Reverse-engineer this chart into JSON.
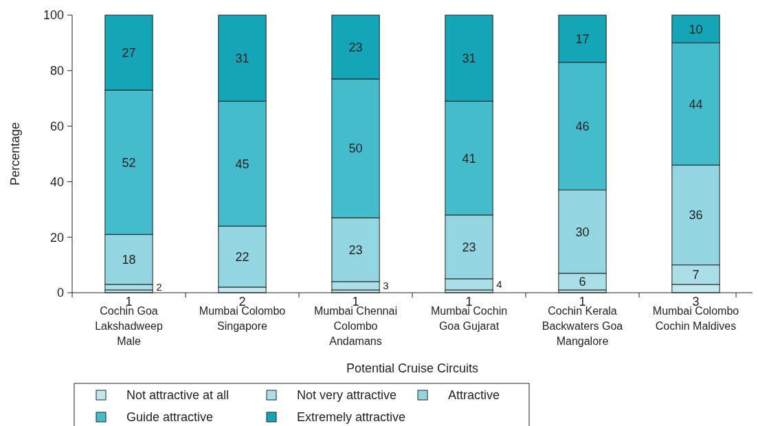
{
  "chart_data": {
    "type": "bar",
    "stacked": true,
    "xlabel": "Potential Cruise Circuits",
    "ylabel": "Percentage",
    "categories": [
      "Cochin Goa Lakshadweep Male",
      "Mumbai Colombo Singapore",
      "Mumbai Chennai Colombo Andamans",
      "Mumbai Cochin Goa Gujarat",
      "Cochin Kerala Backwaters Goa Mangalore",
      "Mumbai Colombo Cochin Maldives"
    ],
    "series": [
      {
        "name": "Not attractive at all",
        "color": "#c2e8ee",
        "values": [
          1,
          2,
          1,
          1,
          1,
          3
        ],
        "value_labels": [
          "1",
          "2",
          "1",
          "1",
          "1",
          "3"
        ]
      },
      {
        "name": "Not very attractive",
        "color": "#aadfe7",
        "values": [
          2,
          0,
          3,
          4,
          6,
          7
        ],
        "value_labels": [
          "2",
          null,
          "3",
          "4",
          "6",
          "7"
        ]
      },
      {
        "name": "Attractive",
        "color": "#93d5e0",
        "values": [
          18,
          22,
          23,
          23,
          30,
          36
        ],
        "value_labels": [
          "18",
          "22",
          "23",
          "23",
          "30",
          "36"
        ]
      },
      {
        "name": "Guide attractive",
        "color": "#45bccb",
        "values": [
          52,
          45,
          50,
          41,
          46,
          44
        ],
        "value_labels": [
          "52",
          "45",
          "50",
          "41",
          "46",
          "44"
        ]
      },
      {
        "name": "Extremely attractive",
        "color": "#14a5b7",
        "values": [
          27,
          31,
          23,
          31,
          17,
          10
        ],
        "value_labels": [
          "27",
          "31",
          "23",
          "31",
          "17",
          "10"
        ]
      }
    ],
    "ylim": [
      0,
      100
    ],
    "yticks": [
      0,
      20,
      40,
      60,
      80,
      100
    ],
    "grid": false,
    "legend": "bottom"
  }
}
